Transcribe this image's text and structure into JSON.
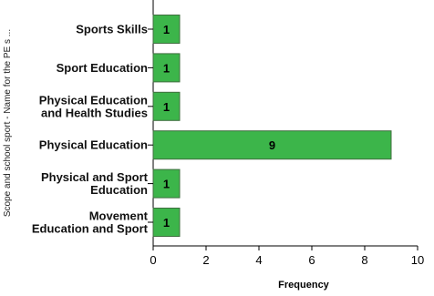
{
  "chart_data": {
    "type": "bar",
    "orientation": "horizontal",
    "categories": [
      [
        "Sports Skills"
      ],
      [
        "Sport Education"
      ],
      [
        "Physical Education",
        "and Health Studies"
      ],
      [
        "Physical Education"
      ],
      [
        "Physical and Sport",
        "Education"
      ],
      [
        "Movement",
        "Education and Sport"
      ]
    ],
    "values": [
      1,
      1,
      1,
      9,
      1,
      1
    ],
    "data_labels": [
      "1",
      "1",
      "1",
      "9",
      "1",
      "1"
    ],
    "xlabel": "Frequency",
    "ylabel": "Scope and school sport - Name for the PE s ...",
    "xlim": [
      0,
      10
    ],
    "xticks": [
      0,
      2,
      4,
      6,
      8,
      10
    ],
    "bar_color": "#3cb54a",
    "bar_edge_color": "#3f6e3f",
    "grid": false,
    "legend": "none"
  }
}
